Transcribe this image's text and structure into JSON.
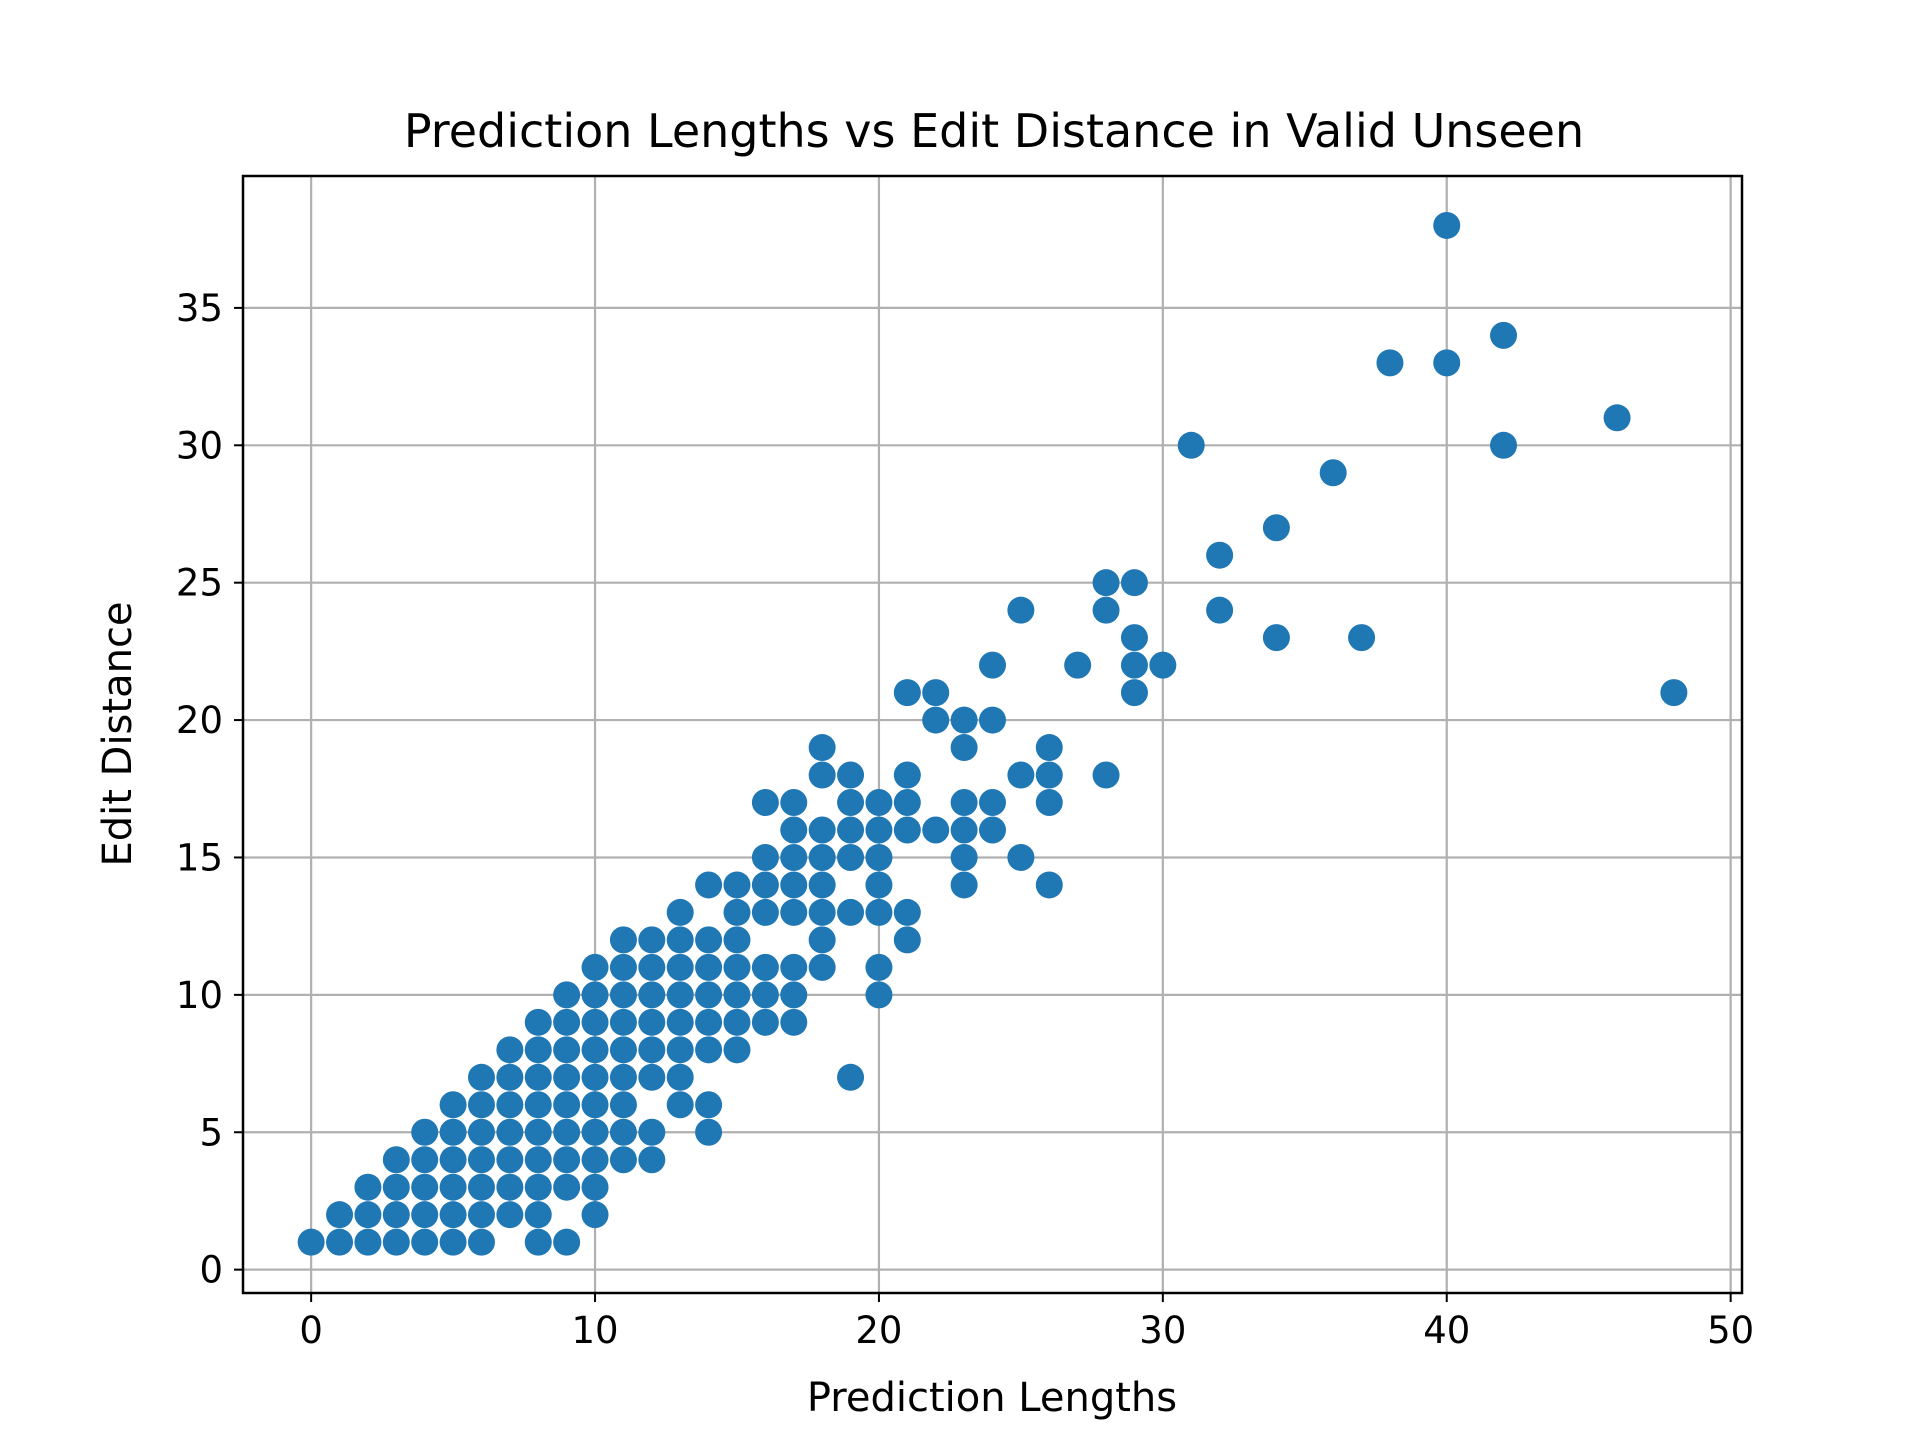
{
  "chart_data": {
    "type": "scatter",
    "title": "Prediction Lengths vs Edit Distance in Valid Unseen",
    "xlabel": "Prediction Lengths",
    "ylabel": "Edit Distance",
    "xlim": [
      -2.4,
      50.4
    ],
    "ylim": [
      -0.85,
      39.8
    ],
    "xticks": [
      0,
      10,
      20,
      30,
      40,
      50
    ],
    "yticks": [
      0,
      5,
      10,
      15,
      20,
      25,
      30,
      35
    ],
    "grid": true,
    "marker_color": "#1f77b4",
    "points": [
      [
        0,
        1
      ],
      [
        1,
        1
      ],
      [
        1,
        2
      ],
      [
        2,
        1
      ],
      [
        2,
        2
      ],
      [
        2,
        3
      ],
      [
        3,
        1
      ],
      [
        3,
        2
      ],
      [
        3,
        3
      ],
      [
        3,
        4
      ],
      [
        4,
        1
      ],
      [
        4,
        2
      ],
      [
        4,
        3
      ],
      [
        4,
        4
      ],
      [
        4,
        5
      ],
      [
        5,
        1
      ],
      [
        5,
        2
      ],
      [
        5,
        3
      ],
      [
        5,
        4
      ],
      [
        5,
        5
      ],
      [
        5,
        6
      ],
      [
        6,
        1
      ],
      [
        6,
        2
      ],
      [
        6,
        3
      ],
      [
        6,
        4
      ],
      [
        6,
        5
      ],
      [
        6,
        6
      ],
      [
        6,
        7
      ],
      [
        7,
        2
      ],
      [
        7,
        3
      ],
      [
        7,
        4
      ],
      [
        7,
        5
      ],
      [
        7,
        6
      ],
      [
        7,
        7
      ],
      [
        7,
        8
      ],
      [
        8,
        1
      ],
      [
        8,
        2
      ],
      [
        8,
        3
      ],
      [
        8,
        4
      ],
      [
        8,
        5
      ],
      [
        8,
        6
      ],
      [
        8,
        7
      ],
      [
        8,
        8
      ],
      [
        8,
        9
      ],
      [
        9,
        1
      ],
      [
        9,
        3
      ],
      [
        9,
        4
      ],
      [
        9,
        5
      ],
      [
        9,
        6
      ],
      [
        9,
        7
      ],
      [
        9,
        8
      ],
      [
        9,
        9
      ],
      [
        9,
        10
      ],
      [
        10,
        2
      ],
      [
        10,
        3
      ],
      [
        10,
        4
      ],
      [
        10,
        5
      ],
      [
        10,
        6
      ],
      [
        10,
        7
      ],
      [
        10,
        8
      ],
      [
        10,
        9
      ],
      [
        10,
        10
      ],
      [
        10,
        11
      ],
      [
        11,
        4
      ],
      [
        11,
        5
      ],
      [
        11,
        6
      ],
      [
        11,
        7
      ],
      [
        11,
        8
      ],
      [
        11,
        9
      ],
      [
        11,
        10
      ],
      [
        11,
        11
      ],
      [
        11,
        12
      ],
      [
        12,
        4
      ],
      [
        12,
        5
      ],
      [
        12,
        7
      ],
      [
        12,
        8
      ],
      [
        12,
        9
      ],
      [
        12,
        10
      ],
      [
        12,
        11
      ],
      [
        12,
        12
      ],
      [
        13,
        6
      ],
      [
        13,
        7
      ],
      [
        13,
        8
      ],
      [
        13,
        9
      ],
      [
        13,
        10
      ],
      [
        13,
        11
      ],
      [
        13,
        12
      ],
      [
        13,
        13
      ],
      [
        14,
        5
      ],
      [
        14,
        6
      ],
      [
        14,
        8
      ],
      [
        14,
        9
      ],
      [
        14,
        10
      ],
      [
        14,
        11
      ],
      [
        14,
        12
      ],
      [
        14,
        14
      ],
      [
        15,
        8
      ],
      [
        15,
        9
      ],
      [
        15,
        10
      ],
      [
        15,
        11
      ],
      [
        15,
        12
      ],
      [
        15,
        13
      ],
      [
        15,
        14
      ],
      [
        16,
        9
      ],
      [
        16,
        10
      ],
      [
        16,
        11
      ],
      [
        16,
        13
      ],
      [
        16,
        14
      ],
      [
        16,
        15
      ],
      [
        16,
        17
      ],
      [
        17,
        9
      ],
      [
        17,
        10
      ],
      [
        17,
        11
      ],
      [
        17,
        13
      ],
      [
        17,
        14
      ],
      [
        17,
        15
      ],
      [
        17,
        16
      ],
      [
        17,
        17
      ],
      [
        18,
        11
      ],
      [
        18,
        12
      ],
      [
        18,
        13
      ],
      [
        18,
        14
      ],
      [
        18,
        15
      ],
      [
        18,
        16
      ],
      [
        18,
        18
      ],
      [
        18,
        19
      ],
      [
        19,
        7
      ],
      [
        19,
        13
      ],
      [
        19,
        15
      ],
      [
        19,
        16
      ],
      [
        19,
        17
      ],
      [
        19,
        18
      ],
      [
        20,
        10
      ],
      [
        20,
        11
      ],
      [
        20,
        13
      ],
      [
        20,
        14
      ],
      [
        20,
        15
      ],
      [
        20,
        16
      ],
      [
        20,
        17
      ],
      [
        21,
        12
      ],
      [
        21,
        13
      ],
      [
        21,
        16
      ],
      [
        21,
        17
      ],
      [
        21,
        18
      ],
      [
        21,
        21
      ],
      [
        22,
        16
      ],
      [
        22,
        20
      ],
      [
        22,
        21
      ],
      [
        23,
        14
      ],
      [
        23,
        15
      ],
      [
        23,
        16
      ],
      [
        23,
        17
      ],
      [
        23,
        19
      ],
      [
        23,
        20
      ],
      [
        24,
        16
      ],
      [
        24,
        17
      ],
      [
        24,
        20
      ],
      [
        24,
        22
      ],
      [
        25,
        15
      ],
      [
        25,
        18
      ],
      [
        25,
        24
      ],
      [
        26,
        14
      ],
      [
        26,
        17
      ],
      [
        26,
        18
      ],
      [
        26,
        19
      ],
      [
        27,
        22
      ],
      [
        28,
        18
      ],
      [
        28,
        24
      ],
      [
        28,
        25
      ],
      [
        29,
        21
      ],
      [
        29,
        22
      ],
      [
        29,
        23
      ],
      [
        29,
        25
      ],
      [
        30,
        22
      ],
      [
        31,
        30
      ],
      [
        32,
        24
      ],
      [
        32,
        26
      ],
      [
        34,
        23
      ],
      [
        34,
        27
      ],
      [
        36,
        29
      ],
      [
        37,
        23
      ],
      [
        38,
        33
      ],
      [
        40,
        33
      ],
      [
        40,
        38
      ],
      [
        42,
        30
      ],
      [
        42,
        34
      ],
      [
        46,
        31
      ],
      [
        48,
        21
      ]
    ]
  }
}
